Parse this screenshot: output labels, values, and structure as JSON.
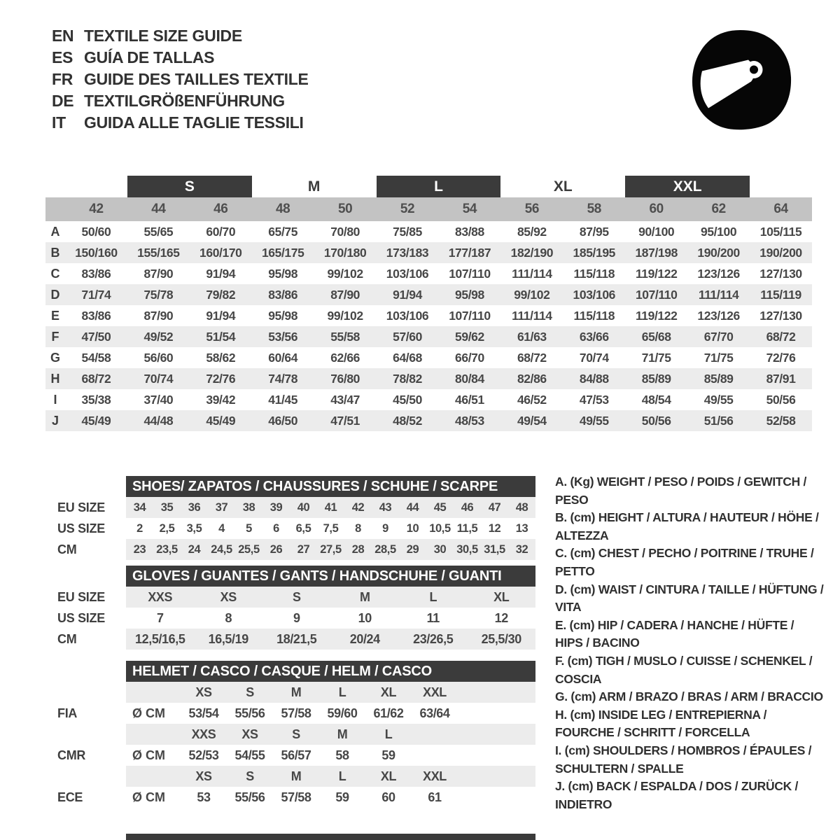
{
  "header": {
    "languages": [
      {
        "code": "EN",
        "text": "TEXTILE SIZE GUIDE"
      },
      {
        "code": "ES",
        "text": "GUÍA DE TALLAS"
      },
      {
        "code": "FR",
        "text": "GUIDE DES TAILLES TEXTILE"
      },
      {
        "code": "DE",
        "text": "TEXTILGRÖßENFÜHRUNG"
      },
      {
        "code": "IT",
        "text": "GUIDA ALLE TAGLIE TESSILI"
      }
    ],
    "logo": "racing-helmet"
  },
  "textile_table": {
    "size_groups": [
      {
        "label": "S",
        "boxed": true
      },
      {
        "label": "M",
        "boxed": false
      },
      {
        "label": "L",
        "boxed": true
      },
      {
        "label": "XL",
        "boxed": false
      },
      {
        "label": "XXL",
        "boxed": true
      }
    ],
    "numeric_sizes": [
      "42",
      "44",
      "46",
      "48",
      "50",
      "52",
      "54",
      "56",
      "58",
      "60",
      "62",
      "64"
    ],
    "rows": [
      {
        "label": "A",
        "values": [
          "50/60",
          "55/65",
          "60/70",
          "65/75",
          "70/80",
          "75/85",
          "83/88",
          "85/92",
          "87/95",
          "90/100",
          "95/100",
          "105/115"
        ]
      },
      {
        "label": "B",
        "values": [
          "150/160",
          "155/165",
          "160/170",
          "165/175",
          "170/180",
          "173/183",
          "177/187",
          "182/190",
          "185/195",
          "187/198",
          "190/200",
          "190/200"
        ]
      },
      {
        "label": "C",
        "values": [
          "83/86",
          "87/90",
          "91/94",
          "95/98",
          "99/102",
          "103/106",
          "107/110",
          "111/114",
          "115/118",
          "119/122",
          "123/126",
          "127/130"
        ]
      },
      {
        "label": "D",
        "values": [
          "71/74",
          "75/78",
          "79/82",
          "83/86",
          "87/90",
          "91/94",
          "95/98",
          "99/102",
          "103/106",
          "107/110",
          "111/114",
          "115/119"
        ]
      },
      {
        "label": "E",
        "values": [
          "83/86",
          "87/90",
          "91/94",
          "95/98",
          "99/102",
          "103/106",
          "107/110",
          "111/114",
          "115/118",
          "119/122",
          "123/126",
          "127/130"
        ]
      },
      {
        "label": "F",
        "values": [
          "47/50",
          "49/52",
          "51/54",
          "53/56",
          "55/58",
          "57/60",
          "59/62",
          "61/63",
          "63/66",
          "65/68",
          "67/70",
          "68/72"
        ]
      },
      {
        "label": "G",
        "values": [
          "54/58",
          "56/60",
          "58/62",
          "60/64",
          "62/66",
          "64/68",
          "66/70",
          "68/72",
          "70/74",
          "71/75",
          "71/75",
          "72/76"
        ]
      },
      {
        "label": "H",
        "values": [
          "68/72",
          "70/74",
          "72/76",
          "74/78",
          "76/80",
          "78/82",
          "80/84",
          "82/86",
          "84/88",
          "85/89",
          "85/89",
          "87/91"
        ]
      },
      {
        "label": "I",
        "values": [
          "35/38",
          "37/40",
          "39/42",
          "41/45",
          "43/47",
          "45/50",
          "46/51",
          "46/52",
          "47/53",
          "48/54",
          "49/55",
          "50/56"
        ]
      },
      {
        "label": "J",
        "values": [
          "45/49",
          "44/48",
          "45/49",
          "46/50",
          "47/51",
          "48/52",
          "48/53",
          "49/54",
          "49/55",
          "50/56",
          "51/56",
          "52/58"
        ]
      }
    ]
  },
  "shoes": {
    "title": "SHOES/ ZAPATOS / CHAUSSURES / SCHUHE / SCARPE",
    "row_labels": [
      "EU SIZE",
      "US SIZE",
      "CM"
    ],
    "eu": [
      "34",
      "35",
      "36",
      "37",
      "38",
      "39",
      "40",
      "41",
      "42",
      "43",
      "44",
      "45",
      "46",
      "47",
      "48"
    ],
    "us": [
      "2",
      "2,5",
      "3,5",
      "4",
      "5",
      "6",
      "6,5",
      "7,5",
      "8",
      "9",
      "10",
      "10,5",
      "11,5",
      "12",
      "13"
    ],
    "cm": [
      "23",
      "23,5",
      "24",
      "24,5",
      "25,5",
      "26",
      "27",
      "27,5",
      "28",
      "28,5",
      "29",
      "30",
      "30,5",
      "31,5",
      "32"
    ]
  },
  "gloves": {
    "title": "GLOVES / GUANTES / GANTS / HANDSCHUHE / GUANTI",
    "row_labels": [
      "EU SIZE",
      "US SIZE",
      "CM"
    ],
    "eu": [
      "XXS",
      "XS",
      "S",
      "M",
      "L",
      "XL"
    ],
    "us": [
      "7",
      "8",
      "9",
      "10",
      "11",
      "12"
    ],
    "cm": [
      "12,5/16,5",
      "16,5/19",
      "18/21,5",
      "20/24",
      "23/26,5",
      "25,5/30"
    ]
  },
  "helmet": {
    "title": "HELMET / CASCO / CASQUE / HELM / CASCO",
    "diameter_label": "Ø CM",
    "standards": [
      {
        "label": "FIA",
        "sizes": [
          "XS",
          "S",
          "M",
          "L",
          "XL",
          "XXL"
        ],
        "values": [
          "53/54",
          "55/56",
          "57/58",
          "59/60",
          "61/62",
          "63/64"
        ]
      },
      {
        "label": "CMR",
        "sizes": [
          "XXS",
          "XS",
          "S",
          "M",
          "L"
        ],
        "values": [
          "52/53",
          "54/55",
          "56/57",
          "58",
          "59"
        ]
      },
      {
        "label": "ECE",
        "sizes": [
          "XS",
          "S",
          "M",
          "L",
          "XL",
          "XXL"
        ],
        "values": [
          "53",
          "55/56",
          "57/58",
          "59",
          "60",
          "61"
        ]
      }
    ]
  },
  "legend": {
    "items": [
      "A. (Kg) WEIGHT / PESO / POIDS / GEWITCH / PESO",
      "B. (cm) HEIGHT / ALTURA / HAUTEUR / HÖHE / ALTEZZA",
      "C. (cm) CHEST / PECHO / POITRINE / TRUHE / PETTO",
      "D. (cm) WAIST / CINTURA / TAILLE / HÜFTUNG / VITA",
      "E. (cm) HIP / CADERA / HANCHE / HÜFTE / HIPS / BACINO",
      "F. (cm) TIGH / MUSLO / CUISSE / SCHENKEL / COSCIA",
      "G. (cm) ARM / BRAZO / BRAS / ARM / BRACCIO",
      "H. (cm) INSIDE LEG / ENTREPIERNA / FOURCHE / SCHRITT / FORCELLA",
      "I. (cm) SHOULDERS / HOMBROS / ÉPAULES / SCHULTERN / SPALLE",
      "J. (cm) BACK / ESPALDA / DOS / ZURÜCK / INDIETRO"
    ]
  },
  "colors": {
    "dark": "#3b3b3b",
    "numeric_band": "#c3c3c3",
    "stripe": "#ececec",
    "text": "#474747"
  }
}
